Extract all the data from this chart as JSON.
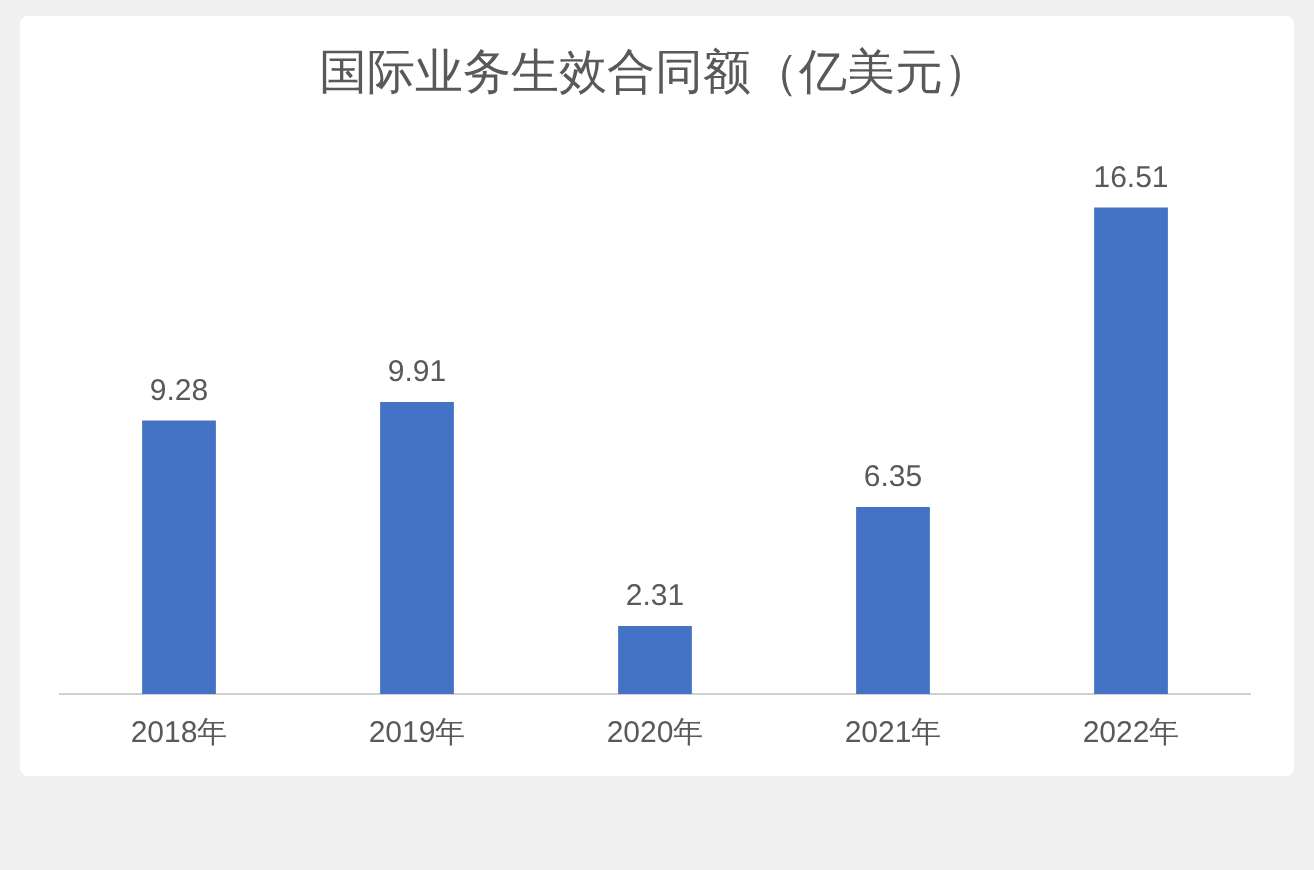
{
  "chart_data": {
    "type": "bar",
    "title": "国际业务生效合同额（亿美元）",
    "categories": [
      "2018年",
      "2019年",
      "2020年",
      "2021年",
      "2022年"
    ],
    "values": [
      9.28,
      9.91,
      2.31,
      6.35,
      16.51
    ],
    "color": "#4472c4",
    "data_labels": true
  }
}
